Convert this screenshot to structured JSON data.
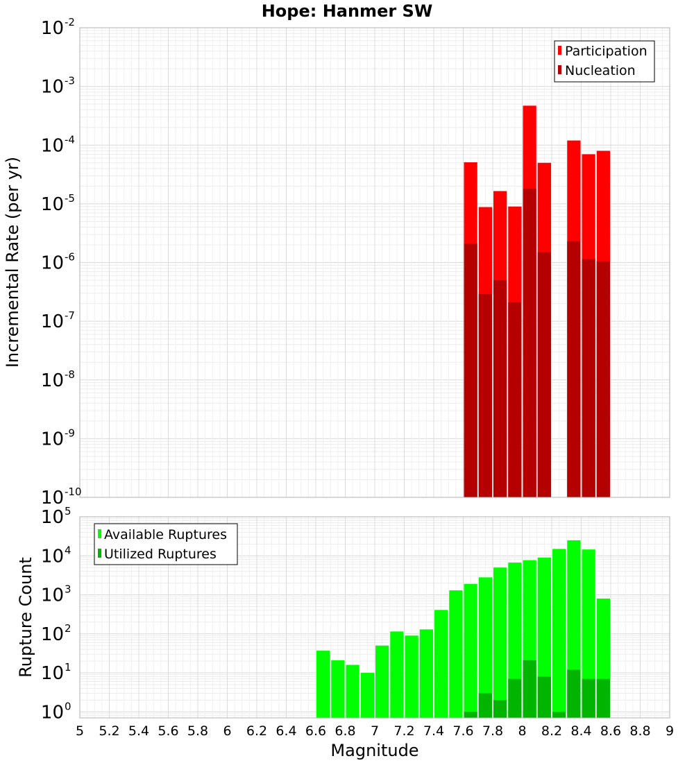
{
  "chart_data": [
    {
      "type": "bar",
      "title": "Hope: Hanmer SW",
      "ylabel": "Incremental Rate (per yr)",
      "xlabel": "",
      "xlim": [
        5,
        9
      ],
      "ylim": [
        1e-10,
        0.01
      ],
      "yscale": "log",
      "bar_width": 0.1,
      "grid": true,
      "legend_position": "top-right",
      "y_tick_exponents": [
        "-10",
        "-9",
        "-8",
        "-7",
        "-6",
        "-5",
        "-4",
        "-3",
        "-2"
      ],
      "series": [
        {
          "name": "Participation",
          "color": "#ff0000",
          "points": [
            {
              "x": 7.65,
              "y": 5.1e-05
            },
            {
              "x": 7.75,
              "y": 8.8e-06
            },
            {
              "x": 7.85,
              "y": 1.65e-05
            },
            {
              "x": 7.95,
              "y": 9e-06
            },
            {
              "x": 8.05,
              "y": 0.00047
            },
            {
              "x": 8.15,
              "y": 5e-05
            },
            {
              "x": 8.35,
              "y": 0.00012
            },
            {
              "x": 8.45,
              "y": 7e-05
            },
            {
              "x": 8.55,
              "y": 8e-05
            }
          ]
        },
        {
          "name": "Nucleation",
          "color": "#b40000",
          "points": [
            {
              "x": 7.65,
              "y": 2.1e-06
            },
            {
              "x": 7.75,
              "y": 2.9e-07
            },
            {
              "x": 7.85,
              "y": 5e-07
            },
            {
              "x": 7.95,
              "y": 2.1e-07
            },
            {
              "x": 8.05,
              "y": 1.8e-05
            },
            {
              "x": 8.15,
              "y": 1.5e-06
            },
            {
              "x": 8.35,
              "y": 2.3e-06
            },
            {
              "x": 8.45,
              "y": 1.15e-06
            },
            {
              "x": 8.55,
              "y": 1.05e-06
            }
          ]
        }
      ]
    },
    {
      "type": "bar",
      "title": "",
      "ylabel": "Rupture Count",
      "xlabel": "Magnitude",
      "xlim": [
        5,
        9
      ],
      "ylim": [
        0.7,
        100000.0
      ],
      "yscale": "log",
      "bar_width": 0.1,
      "grid": true,
      "legend_position": "top-left",
      "y_tick_exponents": [
        "0",
        "1",
        "2",
        "3",
        "4",
        "5"
      ],
      "x_ticks": [
        "5",
        "5.2",
        "5.4",
        "5.6",
        "5.8",
        "6",
        "6.2",
        "6.4",
        "6.6",
        "6.8",
        "7",
        "7.2",
        "7.4",
        "7.6",
        "7.8",
        "8",
        "8.2",
        "8.4",
        "8.6",
        "8.8",
        "9"
      ],
      "series": [
        {
          "name": "Available Ruptures",
          "color": "#00ff00",
          "points": [
            {
              "x": 6.65,
              "y": 37
            },
            {
              "x": 6.75,
              "y": 21
            },
            {
              "x": 6.85,
              "y": 16
            },
            {
              "x": 6.95,
              "y": 10
            },
            {
              "x": 7.05,
              "y": 50
            },
            {
              "x": 7.15,
              "y": 115
            },
            {
              "x": 7.25,
              "y": 90
            },
            {
              "x": 7.35,
              "y": 130
            },
            {
              "x": 7.45,
              "y": 410
            },
            {
              "x": 7.55,
              "y": 1300
            },
            {
              "x": 7.65,
              "y": 1900
            },
            {
              "x": 7.75,
              "y": 2800
            },
            {
              "x": 7.85,
              "y": 5000
            },
            {
              "x": 7.95,
              "y": 6700
            },
            {
              "x": 8.05,
              "y": 7700
            },
            {
              "x": 8.15,
              "y": 9000
            },
            {
              "x": 8.25,
              "y": 15000
            },
            {
              "x": 8.35,
              "y": 25000
            },
            {
              "x": 8.45,
              "y": 14500
            },
            {
              "x": 8.55,
              "y": 800
            }
          ]
        },
        {
          "name": "Utilized Ruptures",
          "color": "#00b400",
          "points": [
            {
              "x": 7.65,
              "y": 1
            },
            {
              "x": 7.75,
              "y": 3
            },
            {
              "x": 7.85,
              "y": 2
            },
            {
              "x": 7.95,
              "y": 7
            },
            {
              "x": 8.05,
              "y": 21
            },
            {
              "x": 8.15,
              "y": 8
            },
            {
              "x": 8.25,
              "y": 1
            },
            {
              "x": 8.35,
              "y": 12
            },
            {
              "x": 8.45,
              "y": 7
            },
            {
              "x": 8.55,
              "y": 7
            }
          ]
        }
      ]
    }
  ]
}
